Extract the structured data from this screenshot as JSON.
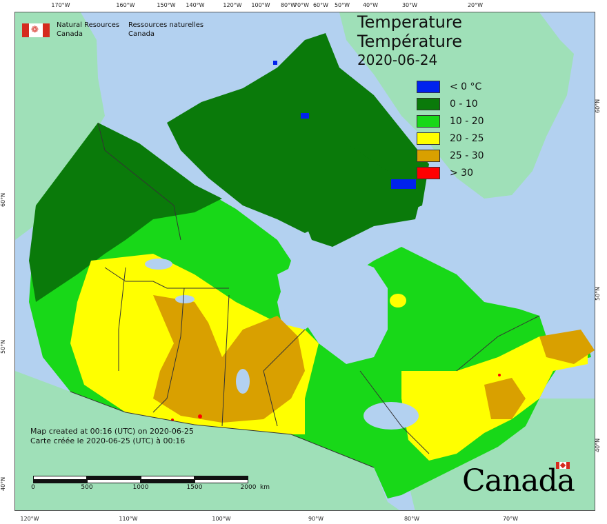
{
  "title": {
    "line1": "Temperature",
    "line2": "Température",
    "date": "2020-06-24"
  },
  "legend": [
    {
      "label": "< 0 °C",
      "color": "#0022ee"
    },
    {
      "label": "0 - 10",
      "color": "#0a7a0a"
    },
    {
      "label": "10 - 20",
      "color": "#18d818"
    },
    {
      "label": "20 - 25",
      "color": "#ffff00"
    },
    {
      "label": "25 - 30",
      "color": "#d9a000"
    },
    {
      "label": "> 30",
      "color": "#ff0000"
    }
  ],
  "agency": {
    "en_line1": "Natural Resources",
    "en_line2": "Canada",
    "fr_line1": "Ressources naturelles",
    "fr_line2": "Canada"
  },
  "credits": {
    "en": "Map created at 00:16 (UTC) on 2020-06-25",
    "fr": "Carte créée le 2020-06-25 (UTC) à 00:16"
  },
  "scale_bar": {
    "labels": [
      "0",
      "500",
      "1000",
      "1500",
      "2000"
    ],
    "unit": "km"
  },
  "wordmark": "Canada",
  "graticule": {
    "top": [
      "170°W",
      "160°W",
      "150°W",
      "140°W",
      "120°W",
      "100°W",
      "80°W",
      "70°W",
      "60°W",
      "50°W",
      "40°W",
      "30°W",
      "20°W"
    ],
    "bottom": [
      "120°W",
      "110°W",
      "100°W",
      "90°W",
      "80°W",
      "70°W"
    ],
    "left": [
      "60°N",
      "50°N",
      "40°N"
    ],
    "right": [
      "60°N",
      "50°N",
      "40°N"
    ]
  },
  "colors": {
    "ocean": "#b3d1f0",
    "foreign_land": "#9fe0b8",
    "border": "#333333"
  }
}
